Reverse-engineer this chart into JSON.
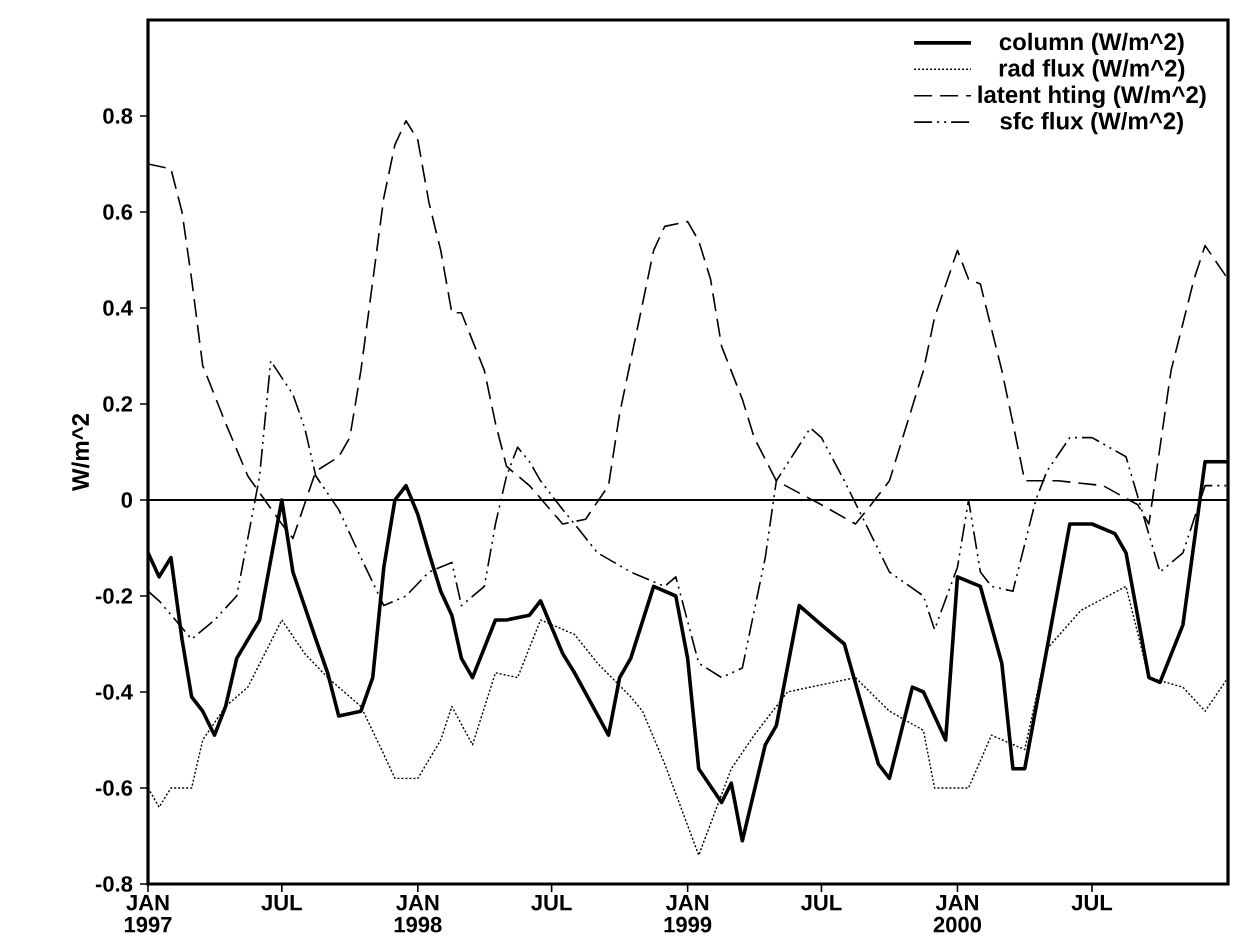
{
  "chart_data": {
    "type": "line",
    "ylabel": "W/m^2",
    "xlim": [
      "1997-01-01",
      "2001-01-01"
    ],
    "ylim": [
      -0.8,
      1.0
    ],
    "xticks": [
      {
        "value": "1997-01-01",
        "label": "JAN 1997"
      },
      {
        "value": "1997-07-01",
        "label": "JUL"
      },
      {
        "value": "1998-01-01",
        "label": "JAN 1998"
      },
      {
        "value": "1998-07-01",
        "label": "JUL"
      },
      {
        "value": "1999-01-01",
        "label": "JAN 1999"
      },
      {
        "value": "1999-07-01",
        "label": "JUL"
      },
      {
        "value": "2000-01-01",
        "label": "JAN 2000"
      },
      {
        "value": "2000-07-01",
        "label": "JUL"
      }
    ],
    "yticks": [
      -0.8,
      -0.6,
      -0.4,
      -0.2,
      0,
      0.2,
      0.4,
      0.6,
      0.8
    ],
    "legend": "top right",
    "grid": false,
    "marker": "none",
    "ref_lines": [
      {
        "axis": "y",
        "value": 0,
        "color": "#000000",
        "line_style": "solid"
      }
    ],
    "series": [
      {
        "name": "column (W/m^2)",
        "color": "#000000",
        "line_style": "solid",
        "x": [
          "1997-01-01",
          "1997-01-16",
          "1997-02-01",
          "1997-02-16",
          "1997-03-01",
          "1997-03-16",
          "1997-04-01",
          "1997-04-16",
          "1997-05-01",
          "1997-06-01",
          "1997-07-01",
          "1997-07-16",
          "1997-08-16",
          "1997-09-01",
          "1997-09-16",
          "1997-10-16",
          "1997-11-01",
          "1997-11-16",
          "1997-12-01",
          "1997-12-16",
          "1998-01-01",
          "1998-01-16",
          "1998-02-01",
          "1998-02-16",
          "1998-03-01",
          "1998-03-16",
          "1998-04-16",
          "1998-05-01",
          "1998-06-01",
          "1998-06-16",
          "1998-07-16",
          "1998-08-01",
          "1998-09-16",
          "1998-10-01",
          "1998-10-16",
          "1998-11-16",
          "1998-12-16",
          "1999-01-01",
          "1999-01-16",
          "1999-02-16",
          "1999-03-01",
          "1999-03-16",
          "1999-04-16",
          "1999-05-01",
          "1999-06-01",
          "1999-07-01",
          "1999-08-01",
          "1999-09-16",
          "1999-10-01",
          "1999-11-01",
          "1999-11-16",
          "1999-12-16",
          "2000-01-01",
          "2000-02-01",
          "2000-03-01",
          "2000-03-16",
          "2000-04-01",
          "2000-05-01",
          "2000-06-01",
          "2000-07-01",
          "2000-08-01",
          "2000-08-16",
          "2000-09-16",
          "2000-10-01",
          "2000-11-01",
          "2000-12-01",
          "2000-12-16",
          "2001-01-01"
        ],
        "values": [
          -0.11,
          -0.16,
          -0.12,
          -0.29,
          -0.41,
          -0.44,
          -0.49,
          -0.43,
          -0.33,
          -0.25,
          0.0,
          -0.15,
          -0.29,
          -0.36,
          -0.45,
          -0.44,
          -0.37,
          -0.14,
          0.0,
          0.03,
          -0.03,
          -0.11,
          -0.19,
          -0.24,
          -0.33,
          -0.37,
          -0.25,
          -0.25,
          -0.24,
          -0.21,
          -0.32,
          -0.36,
          -0.49,
          -0.37,
          -0.33,
          -0.18,
          -0.2,
          -0.33,
          -0.56,
          -0.63,
          -0.59,
          -0.71,
          -0.51,
          -0.47,
          -0.22,
          -0.26,
          -0.3,
          -0.55,
          -0.58,
          -0.39,
          -0.4,
          -0.5,
          -0.16,
          -0.18,
          -0.34,
          -0.56,
          -0.56,
          -0.31,
          -0.05,
          -0.05,
          -0.07,
          -0.11,
          -0.37,
          -0.38,
          -0.26,
          0.08,
          0.08,
          0.08
        ]
      },
      {
        "name": "rad flux (W/m^2)",
        "color": "#000000",
        "line_style": "dotted",
        "x": [
          "1997-01-01",
          "1997-01-16",
          "1997-02-01",
          "1997-03-01",
          "1997-03-16",
          "1997-04-16",
          "1997-05-16",
          "1997-07-01",
          "1997-08-01",
          "1997-09-01",
          "1997-10-16",
          "1997-11-16",
          "1997-12-01",
          "1998-01-01",
          "1998-02-01",
          "1998-02-16",
          "1998-03-16",
          "1998-04-16",
          "1998-05-16",
          "1998-06-16",
          "1998-08-01",
          "1998-09-01",
          "1998-10-16",
          "1998-11-01",
          "1998-12-01",
          "1999-01-16",
          "1999-03-01",
          "1999-04-01",
          "1999-05-16",
          "1999-08-16",
          "1999-10-01",
          "1999-11-16",
          "1999-12-01",
          "2000-01-16",
          "2000-02-16",
          "2000-04-01",
          "2000-05-01",
          "2000-06-16",
          "2000-08-16",
          "2000-09-16",
          "2000-11-01",
          "2000-12-01",
          "2001-01-01"
        ],
        "values": [
          -0.6,
          -0.64,
          -0.6,
          -0.6,
          -0.5,
          -0.43,
          -0.39,
          -0.25,
          -0.32,
          -0.37,
          -0.43,
          -0.53,
          -0.58,
          -0.58,
          -0.5,
          -0.43,
          -0.51,
          -0.36,
          -0.37,
          -0.25,
          -0.28,
          -0.34,
          -0.41,
          -0.44,
          -0.55,
          -0.74,
          -0.56,
          -0.49,
          -0.4,
          -0.37,
          -0.44,
          -0.48,
          -0.6,
          -0.6,
          -0.49,
          -0.52,
          -0.31,
          -0.23,
          -0.18,
          -0.37,
          -0.39,
          -0.44,
          -0.37
        ]
      },
      {
        "name": "latent hting (W/m^2)",
        "color": "#000000",
        "line_style": "dashed",
        "x": [
          "1997-01-01",
          "1997-02-01",
          "1997-02-16",
          "1997-03-01",
          "1997-03-16",
          "1997-04-16",
          "1997-05-16",
          "1997-07-01",
          "1997-07-16",
          "1997-08-16",
          "1997-09-16",
          "1997-10-01",
          "1997-10-16",
          "1997-11-16",
          "1997-12-01",
          "1997-12-16",
          "1998-01-01",
          "1998-01-16",
          "1998-02-01",
          "1998-02-16",
          "1998-03-01",
          "1998-04-01",
          "1998-04-16",
          "1998-05-01",
          "1998-06-01",
          "1998-07-16",
          "1998-08-16",
          "1998-09-16",
          "1998-10-01",
          "1998-11-16",
          "1998-12-01",
          "1999-01-01",
          "1999-01-16",
          "1999-02-01",
          "1999-02-16",
          "1999-03-16",
          "1999-04-01",
          "1999-05-01",
          "1999-07-01",
          "1999-08-16",
          "1999-09-01",
          "1999-10-01",
          "1999-11-16",
          "1999-12-01",
          "2000-01-01",
          "2000-01-16",
          "2000-02-01",
          "2000-03-01",
          "2000-03-16",
          "2000-04-01",
          "2000-05-16",
          "2000-07-16",
          "2000-09-01",
          "2000-09-16",
          "2000-10-16",
          "2000-11-16",
          "2000-12-01",
          "2001-01-01"
        ],
        "values": [
          0.7,
          0.69,
          0.6,
          0.46,
          0.28,
          0.16,
          0.05,
          -0.05,
          -0.08,
          0.06,
          0.09,
          0.13,
          0.27,
          0.63,
          0.74,
          0.79,
          0.75,
          0.62,
          0.52,
          0.39,
          0.39,
          0.27,
          0.16,
          0.07,
          0.03,
          -0.05,
          -0.04,
          0.03,
          0.18,
          0.52,
          0.57,
          0.58,
          0.54,
          0.46,
          0.32,
          0.21,
          0.13,
          0.04,
          -0.01,
          -0.05,
          -0.02,
          0.04,
          0.27,
          0.38,
          0.52,
          0.46,
          0.45,
          0.27,
          0.16,
          0.04,
          0.04,
          0.03,
          -0.01,
          -0.05,
          0.27,
          0.46,
          0.53,
          0.46
        ]
      },
      {
        "name": "sfc flux (W/m^2)",
        "color": "#000000",
        "line_style": "dashdotdotted",
        "x": [
          "1997-01-01",
          "1997-01-16",
          "1997-03-01",
          "1997-04-01",
          "1997-05-01",
          "1997-05-16",
          "1997-06-01",
          "1997-06-16",
          "1997-07-16",
          "1997-08-01",
          "1997-08-16",
          "1997-09-16",
          "1997-10-16",
          "1997-11-16",
          "1997-12-16",
          "1998-01-16",
          "1998-02-16",
          "1998-03-01",
          "1998-04-01",
          "1998-04-16",
          "1998-05-01",
          "1998-05-16",
          "1998-06-01",
          "1998-06-16",
          "1998-07-16",
          "1998-08-01",
          "1998-09-01",
          "1998-10-16",
          "1998-12-01",
          "1998-12-16",
          "1999-01-16",
          "1999-02-16",
          "1999-03-16",
          "1999-04-16",
          "1999-05-01",
          "1999-06-16",
          "1999-07-01",
          "1999-08-01",
          "1999-10-01",
          "1999-11-16",
          "1999-12-01",
          "2000-01-01",
          "2000-01-16",
          "2000-02-01",
          "2000-02-16",
          "2000-03-16",
          "2000-04-16",
          "2000-05-01",
          "2000-06-01",
          "2000-07-01",
          "2000-08-16",
          "2000-10-01",
          "2000-11-01",
          "2000-12-01",
          "2001-01-01"
        ],
        "values": [
          -0.19,
          -0.21,
          -0.29,
          -0.25,
          -0.2,
          -0.08,
          0.05,
          0.29,
          0.22,
          0.15,
          0.05,
          -0.02,
          -0.12,
          -0.22,
          -0.2,
          -0.15,
          -0.13,
          -0.22,
          -0.18,
          -0.05,
          0.05,
          0.11,
          0.08,
          0.04,
          -0.02,
          -0.05,
          -0.11,
          -0.15,
          -0.18,
          -0.16,
          -0.34,
          -0.37,
          -0.35,
          -0.12,
          0.04,
          0.15,
          0.13,
          0.04,
          -0.15,
          -0.2,
          -0.27,
          -0.14,
          0.0,
          -0.15,
          -0.18,
          -0.19,
          0.0,
          0.06,
          0.13,
          0.13,
          0.09,
          -0.15,
          -0.11,
          0.03,
          0.03
        ]
      }
    ]
  }
}
